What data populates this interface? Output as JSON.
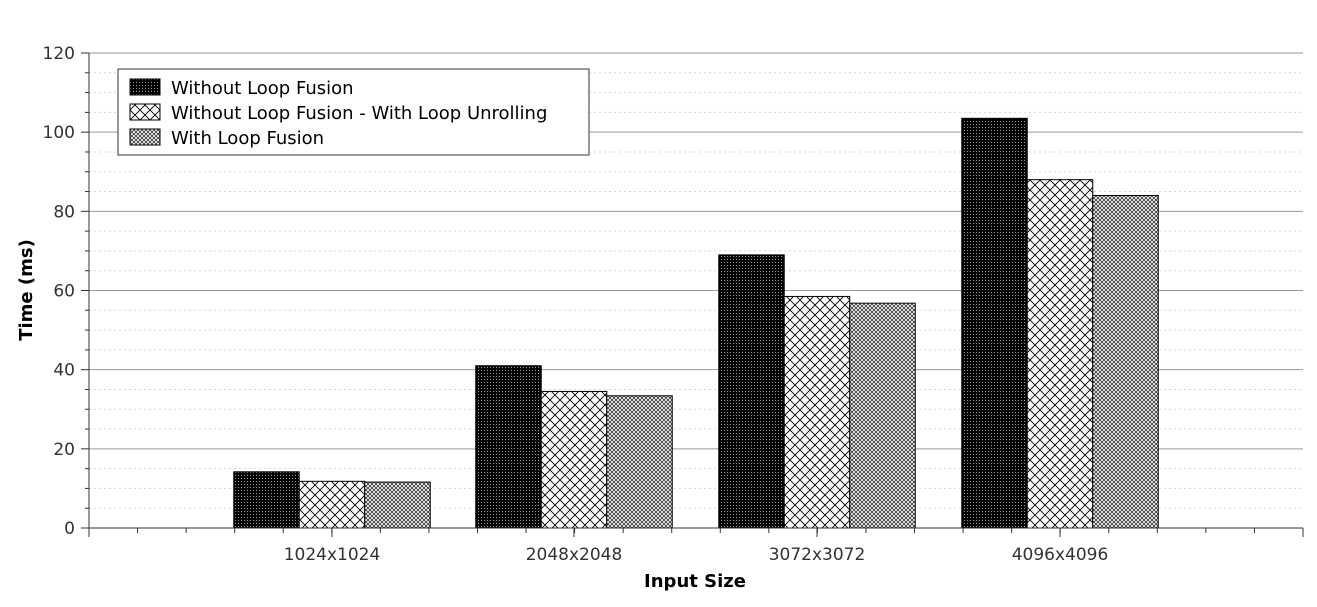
{
  "chart_data": {
    "type": "bar",
    "categories": [
      "1024x1024",
      "2048x2048",
      "3072x3072",
      "4096x4096"
    ],
    "series": [
      {
        "name": "Without Loop Fusion",
        "values": [
          14.2,
          41.0,
          69.0,
          103.5
        ],
        "pattern": "dark-dots"
      },
      {
        "name": "Without Loop Fusion - With Loop Unrolling",
        "values": [
          11.8,
          34.5,
          58.5,
          88.0
        ],
        "pattern": "crosshatch"
      },
      {
        "name": "With Loop Fusion",
        "values": [
          11.6,
          33.4,
          56.8,
          84.0
        ],
        "pattern": "fine-hatch"
      }
    ],
    "xlabel": "Input Size",
    "ylabel": "Time (ms)",
    "ylim": [
      0,
      120
    ],
    "yticks": [
      0,
      20,
      40,
      60,
      80,
      100,
      120
    ],
    "grid": true,
    "legend_position": "top-left"
  }
}
